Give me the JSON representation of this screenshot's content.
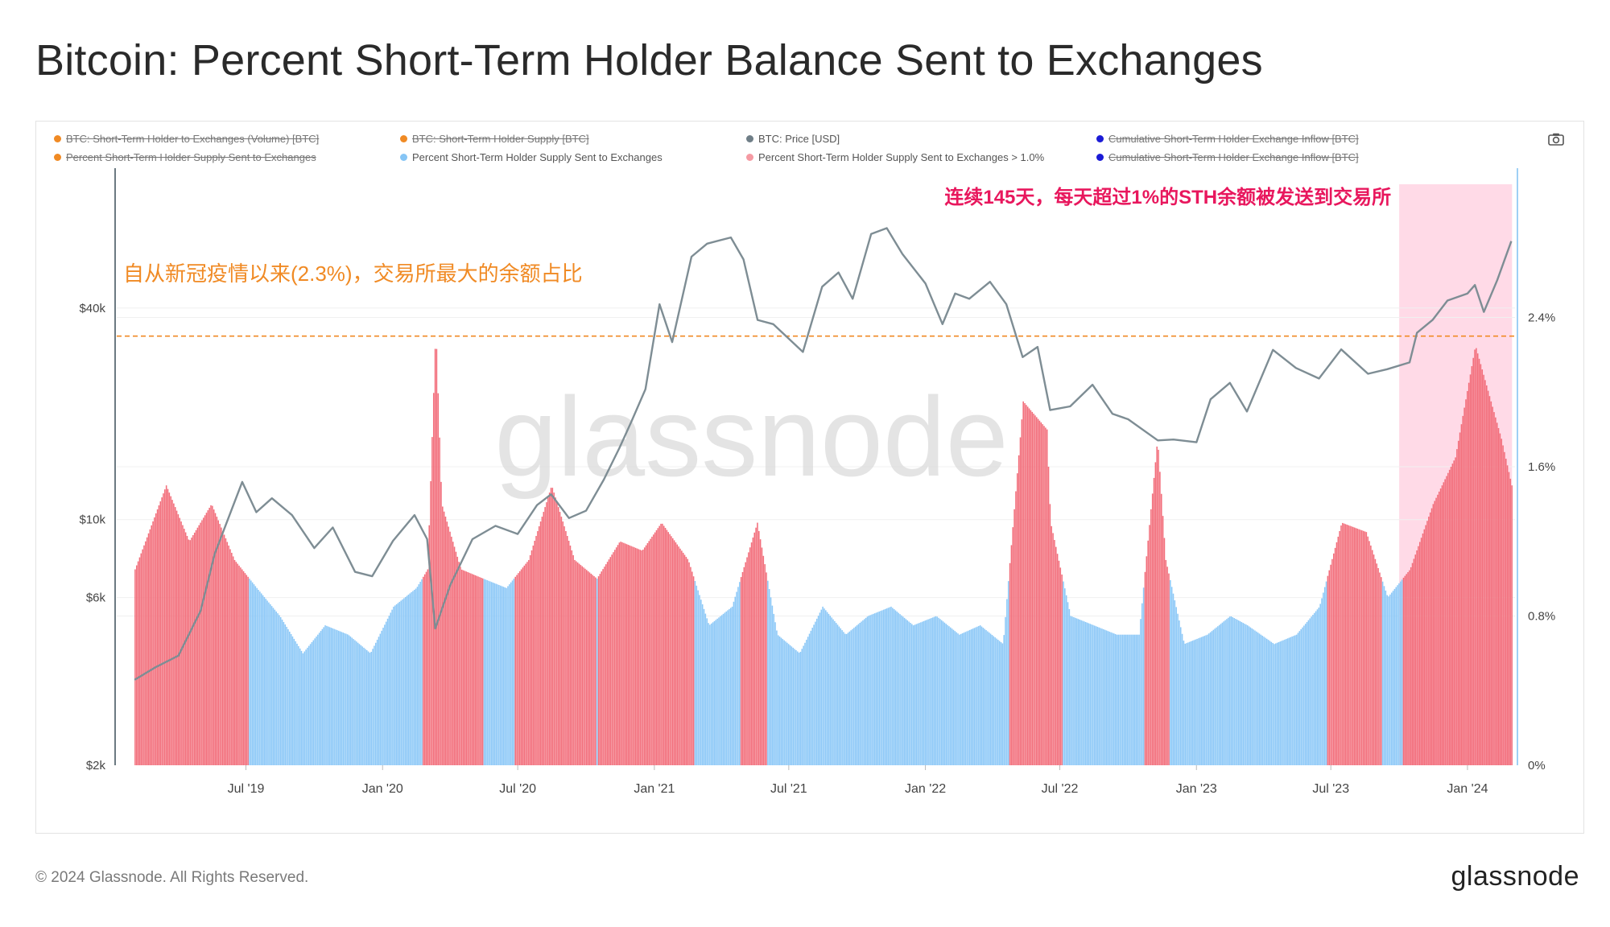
{
  "title": "Bitcoin: Percent Short-Term Holder Balance Sent to Exchanges",
  "legend": [
    {
      "label": "BTC: Short-Term Holder to Exchanges (Volume) [BTC]",
      "color": "#f08a24",
      "disabled": true
    },
    {
      "label": "BTC: Short-Term Holder Supply [BTC]",
      "color": "#f08a24",
      "disabled": true
    },
    {
      "label": "BTC: Price [USD]",
      "color": "#6f7e87",
      "disabled": false
    },
    {
      "label": "Cumulative Short-Term Holder Exchange Inflow [BTC]",
      "color": "#1b1bd6",
      "disabled": true
    },
    {
      "label": "Percent Short-Term Holder Supply Sent to Exchanges",
      "color": "#f08a24",
      "disabled": true
    },
    {
      "label": "Percent Short-Term Holder Supply Sent to Exchanges",
      "color": "#86c5f5",
      "disabled": false
    },
    {
      "label": "Percent Short-Term Holder Supply Sent to Exchanges > 1.0%",
      "color": "#f59aa3",
      "disabled": false
    },
    {
      "label": "Cumulative Short-Term Holder Exchange Inflow [BTC]",
      "color": "#1b1bd6",
      "disabled": true
    }
  ],
  "watermark": "glassnode",
  "annotation_left": "自从新冠疫情以来(2.3%)，交易所最大的余额占比",
  "annotation_right": "连续145天，每天超过1%的STH余额被发送到交易所",
  "footer": {
    "copyright": "© 2024 Glassnode. All Rights Reserved.",
    "logo": "glassnode"
  },
  "colors": {
    "price_line": "#7e8d94",
    "bar_below": "#8cc8f7",
    "bar_above": "#f26d7a",
    "highlight_zone": "#ffd3e3",
    "reference_line": "#f08a24",
    "annotation_left": "#f08a24",
    "annotation_right": "#e8175d",
    "right_axis_line": "#9fd0f5"
  },
  "chart_data": {
    "type": "line+bar",
    "x_ticks": [
      "Jul '19",
      "Jan '20",
      "Jul '20",
      "Jan '21",
      "Jul '21",
      "Jan '22",
      "Jul '22",
      "Jan '23",
      "Jul '23",
      "Jan '24"
    ],
    "y_left": {
      "label": "",
      "scale": "log",
      "ticks": [
        "$2k",
        "$6k",
        "$10k",
        "$40k"
      ],
      "tick_values": [
        2000,
        6000,
        10000,
        40000
      ],
      "range": [
        2000,
        100000
      ]
    },
    "y_right": {
      "label": "",
      "ticks": [
        "0%",
        "0.8%",
        "1.6%",
        "2.4%"
      ],
      "tick_values": [
        0,
        0.8,
        1.6,
        2.4
      ],
      "range": [
        0,
        3.2
      ]
    },
    "reference_line": {
      "value": 2.3,
      "axis": "right",
      "style": "dashed"
    },
    "threshold": 1.0,
    "highlight_zone": {
      "start": "2023-10-01",
      "end": "2024-03-01"
    },
    "series": [
      {
        "name": "BTC: Price [USD]",
        "axis": "left",
        "type": "line",
        "x": [
          "2019-02-01",
          "2019-03-01",
          "2019-04-01",
          "2019-05-01",
          "2019-05-20",
          "2019-06-26",
          "2019-07-15",
          "2019-08-05",
          "2019-09-01",
          "2019-10-01",
          "2019-10-26",
          "2019-11-25",
          "2019-12-18",
          "2020-01-15",
          "2020-02-13",
          "2020-03-01",
          "2020-03-12",
          "2020-04-01",
          "2020-05-01",
          "2020-06-01",
          "2020-07-01",
          "2020-07-27",
          "2020-08-15",
          "2020-09-08",
          "2020-10-01",
          "2020-10-25",
          "2020-11-15",
          "2020-12-01",
          "2020-12-20",
          "2021-01-08",
          "2021-01-25",
          "2021-02-20",
          "2021-03-13",
          "2021-04-14",
          "2021-05-01",
          "2021-05-20",
          "2021-06-10",
          "2021-07-20",
          "2021-08-15",
          "2021-09-06",
          "2021-09-25",
          "2021-10-20",
          "2021-11-10",
          "2021-12-01",
          "2022-01-01",
          "2022-01-24",
          "2022-02-10",
          "2022-03-01",
          "2022-03-29",
          "2022-04-20",
          "2022-05-12",
          "2022-06-01",
          "2022-06-18",
          "2022-07-15",
          "2022-08-14",
          "2022-09-10",
          "2022-10-01",
          "2022-11-10",
          "2022-12-01",
          "2023-01-01",
          "2023-01-20",
          "2023-02-15",
          "2023-03-10",
          "2023-04-14",
          "2023-05-15",
          "2023-06-15",
          "2023-07-15",
          "2023-08-20",
          "2023-09-15",
          "2023-10-15",
          "2023-10-25",
          "2023-11-15",
          "2023-12-05",
          "2024-01-01",
          "2024-01-11",
          "2024-01-23",
          "2024-02-10",
          "2024-02-29"
        ],
        "values": [
          3500,
          3800,
          4100,
          5500,
          8000,
          12800,
          10500,
          11500,
          10300,
          8300,
          9500,
          7100,
          6900,
          8700,
          10300,
          8800,
          4900,
          6500,
          8800,
          9600,
          9100,
          11000,
          11800,
          10100,
          10600,
          13000,
          16000,
          19000,
          23500,
          41000,
          32000,
          56000,
          61000,
          63500,
          55000,
          37000,
          36000,
          30000,
          46000,
          50500,
          42500,
          65000,
          67500,
          57000,
          47000,
          36000,
          44000,
          42500,
          47500,
          41000,
          29000,
          31000,
          20500,
          21000,
          24200,
          20000,
          19300,
          16800,
          16900,
          16600,
          22000,
          24500,
          20300,
          30400,
          27000,
          25200,
          30500,
          26000,
          26800,
          28000,
          34000,
          37000,
          42000,
          44000,
          46500,
          39000,
          48000,
          62000
        ]
      },
      {
        "name": "Percent Short-Term Holder Supply Sent to Exchanges",
        "axis": "right",
        "type": "bar",
        "x": [
          "2019-02-01",
          "2019-03-15",
          "2019-04-15",
          "2019-05-15",
          "2019-06-15",
          "2019-07-15",
          "2019-08-15",
          "2019-09-15",
          "2019-10-15",
          "2019-11-15",
          "2019-12-15",
          "2020-01-15",
          "2020-02-15",
          "2020-03-01",
          "2020-03-12",
          "2020-03-20",
          "2020-04-15",
          "2020-05-15",
          "2020-06-15",
          "2020-07-15",
          "2020-08-15",
          "2020-09-15",
          "2020-10-15",
          "2020-11-15",
          "2020-12-15",
          "2021-01-10",
          "2021-02-15",
          "2021-03-15",
          "2021-04-15",
          "2021-05-19",
          "2021-06-15",
          "2021-07-15",
          "2021-08-15",
          "2021-09-15",
          "2021-10-15",
          "2021-11-15",
          "2021-12-15",
          "2022-01-15",
          "2022-02-15",
          "2022-03-15",
          "2022-04-15",
          "2022-05-12",
          "2022-06-13",
          "2022-06-18",
          "2022-07-15",
          "2022-08-15",
          "2022-09-15",
          "2022-10-15",
          "2022-11-09",
          "2022-11-20",
          "2022-12-15",
          "2023-01-15",
          "2023-02-15",
          "2023-03-10",
          "2023-04-15",
          "2023-05-15",
          "2023-06-15",
          "2023-07-15",
          "2023-08-17",
          "2023-09-15",
          "2023-10-15",
          "2023-11-15",
          "2023-12-15",
          "2024-01-11",
          "2024-01-25",
          "2024-02-15",
          "2024-02-29"
        ],
        "values": [
          1.05,
          1.5,
          1.2,
          1.4,
          1.1,
          0.95,
          0.8,
          0.6,
          0.75,
          0.7,
          0.6,
          0.85,
          0.95,
          1.05,
          2.35,
          1.4,
          1.05,
          1.0,
          0.95,
          1.1,
          1.5,
          1.1,
          1.0,
          1.2,
          1.15,
          1.3,
          1.1,
          0.75,
          0.85,
          1.3,
          0.7,
          0.6,
          0.85,
          0.7,
          0.8,
          0.85,
          0.75,
          0.8,
          0.7,
          0.75,
          0.65,
          1.95,
          1.8,
          1.3,
          0.8,
          0.75,
          0.7,
          0.7,
          1.75,
          1.1,
          0.65,
          0.7,
          0.8,
          0.75,
          0.65,
          0.7,
          0.85,
          1.3,
          1.25,
          0.9,
          1.05,
          1.4,
          1.65,
          2.25,
          2.05,
          1.75,
          1.5
        ]
      }
    ]
  }
}
